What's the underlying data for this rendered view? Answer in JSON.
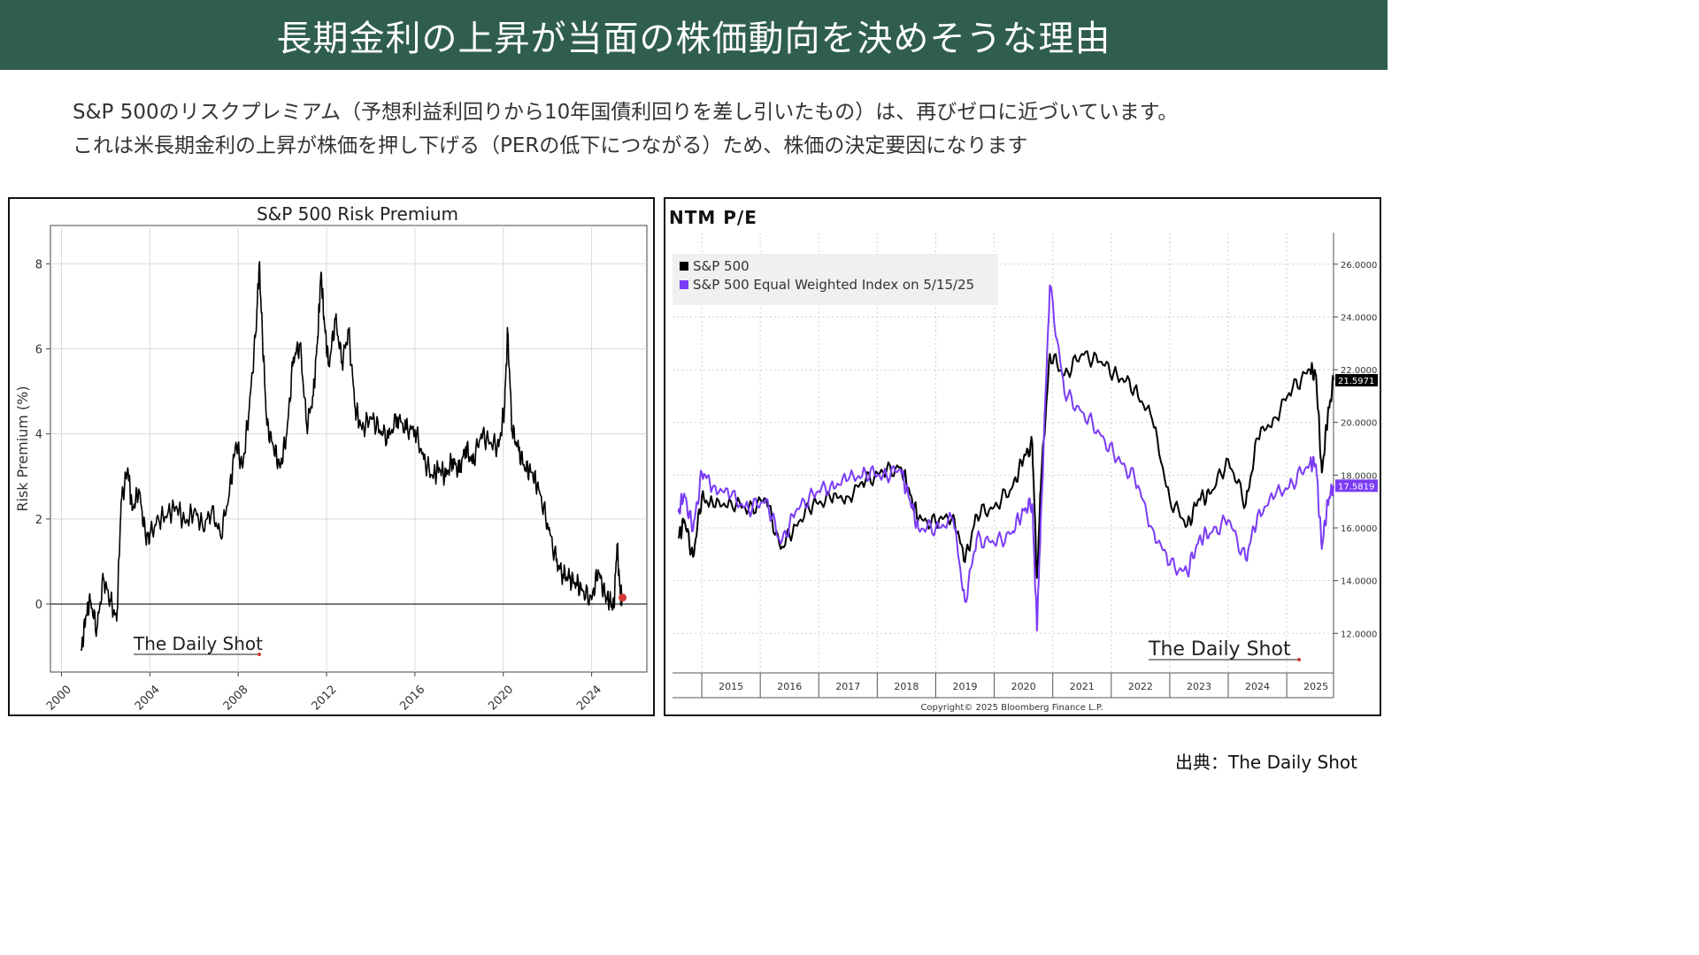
{
  "header": {
    "title": "長期金利の上昇が当面の株価動向を決めそうな理由"
  },
  "description": {
    "line1": "S&P 500のリスクプレミアム（予想利益利回りから10年国債利回りを差し引いたもの）は、再びゼロに近づいています。",
    "line2": "これは米長期金利の上昇が株価を押し下げる（PERの低下につながる）ため、株価の決定要因になります"
  },
  "source": "出典：The Daily Shot",
  "chart_data": [
    {
      "type": "line",
      "title": "S&P 500 Risk Premium",
      "ylabel": "Risk Premium (%)",
      "xlabel": "",
      "xlim": [
        1999.5,
        2026.5
      ],
      "ylim": [
        -1.6,
        8.9
      ],
      "x_ticks": [
        "2000",
        "2004",
        "2008",
        "2012",
        "2016",
        "2020",
        "2024"
      ],
      "y_ticks": [
        "0",
        "2",
        "4",
        "6",
        "8"
      ],
      "grid": true,
      "watermark": "The Daily Shot",
      "latest_marker": {
        "x": 2025.4,
        "y": 0.15,
        "color": "#d23a3a"
      },
      "series": [
        {
          "color": "#000000",
          "x": [
            2000.9,
            2001.1,
            2001.3,
            2001.6,
            2001.9,
            2002.2,
            2002.5,
            2002.7,
            2003.0,
            2003.2,
            2003.5,
            2003.8,
            2004.0,
            2004.4,
            2004.8,
            2005.2,
            2005.6,
            2006.0,
            2006.4,
            2006.8,
            2007.2,
            2007.6,
            2007.9,
            2008.2,
            2008.5,
            2008.8,
            2008.95,
            2009.1,
            2009.3,
            2009.6,
            2009.9,
            2010.2,
            2010.5,
            2010.8,
            2011.1,
            2011.4,
            2011.6,
            2011.75,
            2011.9,
            2012.1,
            2012.4,
            2012.7,
            2013.0,
            2013.3,
            2013.6,
            2014.0,
            2014.4,
            2014.8,
            2015.2,
            2015.6,
            2016.0,
            2016.4,
            2016.8,
            2017.1,
            2017.4,
            2017.7,
            2018.0,
            2018.3,
            2018.6,
            2019.0,
            2019.4,
            2019.8,
            2020.05,
            2020.2,
            2020.4,
            2020.7,
            2021.0,
            2021.3,
            2021.6,
            2022.0,
            2022.4,
            2022.7,
            2023.0,
            2023.3,
            2023.6,
            2024.0,
            2024.3,
            2024.6,
            2024.8,
            2025.0,
            2025.15,
            2025.3,
            2025.4
          ],
          "y": [
            -1.1,
            -0.3,
            0.1,
            -0.6,
            0.6,
            0.1,
            -0.4,
            2.4,
            3.2,
            2.2,
            2.7,
            1.6,
            1.6,
            2.0,
            2.1,
            2.3,
            1.9,
            2.2,
            1.8,
            2.2,
            1.6,
            2.6,
            3.8,
            3.2,
            4.6,
            6.4,
            8.0,
            6.3,
            4.2,
            3.7,
            3.2,
            4.0,
            5.8,
            6.1,
            4.2,
            4.9,
            6.3,
            7.8,
            6.6,
            5.6,
            6.7,
            5.7,
            6.4,
            4.6,
            4.1,
            4.4,
            4.1,
            3.9,
            4.4,
            4.1,
            4.1,
            3.4,
            3.0,
            3.2,
            3.0,
            3.4,
            3.1,
            3.7,
            3.3,
            4.0,
            3.8,
            3.7,
            4.6,
            6.4,
            4.1,
            3.6,
            3.2,
            3.1,
            2.7,
            1.9,
            1.0,
            0.7,
            0.6,
            0.5,
            0.3,
            0.1,
            0.8,
            0.2,
            0.1,
            -0.1,
            1.4,
            0.2,
            0.15
          ]
        }
      ]
    },
    {
      "type": "line",
      "title": "NTM P/E",
      "xlabel": "",
      "ylabel": "",
      "xlim": [
        2014.0,
        2025.3
      ],
      "ylim": [
        10.5,
        27.2
      ],
      "x_ticks": [
        "2015",
        "2016",
        "2017",
        "2018",
        "2019",
        "2020",
        "2021",
        "2022",
        "2023",
        "2024",
        "2025"
      ],
      "y_ticks": [
        "12.0000",
        "14.0000",
        "16.0000",
        "18.0000",
        "20.0000",
        "22.0000",
        "24.0000",
        "26.0000"
      ],
      "grid": true,
      "legend_position": "top-left",
      "footer_note": "Copyright© 2025 Bloomberg Finance L.P.",
      "watermark": "The Daily Shot",
      "series": [
        {
          "name": "S&P 500",
          "color": "#000000",
          "last_value_label": "21.5971",
          "x": [
            2014.1,
            2014.2,
            2014.35,
            2014.5,
            2014.7,
            2015.0,
            2015.3,
            2015.6,
            2015.85,
            2016.1,
            2016.4,
            2016.7,
            2017.0,
            2017.3,
            2017.6,
            2017.9,
            2018.05,
            2018.2,
            2018.5,
            2018.8,
            2019.0,
            2019.2,
            2019.5,
            2019.8,
            2020.0,
            2020.15,
            2020.23,
            2020.3,
            2020.45,
            2020.7,
            2021.0,
            2021.3,
            2021.6,
            2021.9,
            2022.2,
            2022.5,
            2022.8,
            2023.0,
            2023.2,
            2023.5,
            2023.8,
            2024.0,
            2024.3,
            2024.6,
            2024.9,
            2025.0,
            2025.1,
            2025.2,
            2025.3
          ],
          "y": [
            15.6,
            16.3,
            14.9,
            17.2,
            16.8,
            17.0,
            16.7,
            17.1,
            15.2,
            16.1,
            16.9,
            17.1,
            17.2,
            17.8,
            18.1,
            18.3,
            17.4,
            16.3,
            16.2,
            16.5,
            14.7,
            16.5,
            16.8,
            17.5,
            18.6,
            19.2,
            14.1,
            17.8,
            22.6,
            21.8,
            22.6,
            22.3,
            21.8,
            21.3,
            20.1,
            17.1,
            16.1,
            17.1,
            17.3,
            18.6,
            16.9,
            19.4,
            20.2,
            21.3,
            22.0,
            21.8,
            18.1,
            20.2,
            21.6
          ]
        },
        {
          "name": "S&P 500 Equal Weighted Index on 5/15/25",
          "color": "#7b3cf5",
          "last_value_label": "17.5819",
          "x": [
            2014.1,
            2014.2,
            2014.35,
            2014.5,
            2014.7,
            2015.0,
            2015.3,
            2015.6,
            2015.85,
            2016.1,
            2016.4,
            2016.7,
            2017.0,
            2017.3,
            2017.6,
            2017.9,
            2018.05,
            2018.2,
            2018.5,
            2018.8,
            2019.0,
            2019.2,
            2019.5,
            2019.8,
            2020.0,
            2020.15,
            2020.23,
            2020.3,
            2020.45,
            2020.7,
            2021.0,
            2021.3,
            2021.6,
            2021.9,
            2022.2,
            2022.5,
            2022.8,
            2023.0,
            2023.2,
            2023.5,
            2023.8,
            2024.0,
            2024.3,
            2024.6,
            2024.9,
            2025.0,
            2025.1,
            2025.2,
            2025.3
          ],
          "y": [
            16.6,
            17.3,
            15.9,
            18.1,
            17.6,
            17.2,
            16.7,
            17.1,
            15.4,
            16.6,
            17.3,
            17.6,
            17.8,
            18.1,
            18.0,
            18.2,
            17.1,
            16.0,
            16.0,
            16.3,
            13.2,
            15.6,
            15.4,
            15.8,
            16.7,
            16.9,
            12.1,
            16.6,
            25.2,
            21.1,
            20.4,
            19.6,
            18.6,
            17.9,
            16.0,
            14.6,
            14.3,
            15.6,
            15.8,
            16.3,
            14.8,
            16.5,
            17.2,
            17.7,
            18.5,
            18.4,
            15.2,
            17.0,
            17.6
          ]
        }
      ]
    }
  ]
}
